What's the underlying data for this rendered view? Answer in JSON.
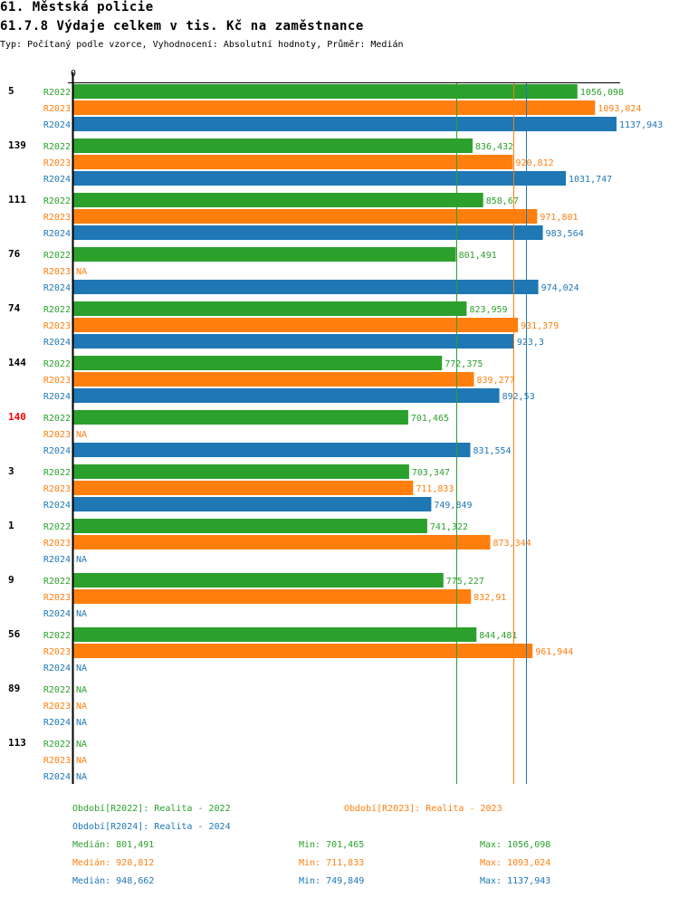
{
  "header": {
    "title": "61. Městská policie",
    "subtitle": "61.7.8 Výdaje celkem v tis. Kč na zaměstnance",
    "info": "Typ: Počítaný podle vzorce, Vyhodnocení: Absolutní hodnoty, Průměr: Medián"
  },
  "colors": {
    "R2022": "#2ca02c",
    "R2023": "#ff7f0e",
    "R2024": "#1f77b4",
    "highlight": "#ff0000",
    "axis": "#000000"
  },
  "chart_data": {
    "type": "bar",
    "orientation": "horizontal",
    "title": "61.7.8 Výdaje celkem v tis. Kč na zaměstnance",
    "xlabel": "",
    "ylabel": "",
    "x_tick_labels": [
      "0"
    ],
    "xlim": [
      0,
      1137.943
    ],
    "series_names": [
      "R2022",
      "R2023",
      "R2024"
    ],
    "na_label": "NA",
    "groups": [
      {
        "id": "5",
        "highlight": false,
        "values": [
          1056.098,
          1093.024,
          1137.943
        ],
        "labels": [
          "1056,098",
          "1093,024",
          "1137,943"
        ]
      },
      {
        "id": "139",
        "highlight": false,
        "values": [
          836.432,
          920.812,
          1031.747
        ],
        "labels": [
          "836,432",
          "920,812",
          "1031,747"
        ]
      },
      {
        "id": "111",
        "highlight": false,
        "values": [
          858.67,
          971.801,
          983.564
        ],
        "labels": [
          "858,67",
          "971,801",
          "983,564"
        ]
      },
      {
        "id": "76",
        "highlight": false,
        "values": [
          801.491,
          null,
          974.024
        ],
        "labels": [
          "801,491",
          "NA",
          "974,024"
        ]
      },
      {
        "id": "74",
        "highlight": false,
        "values": [
          823.959,
          931.379,
          923.3
        ],
        "labels": [
          "823,959",
          "931,379",
          "923,3"
        ]
      },
      {
        "id": "144",
        "highlight": false,
        "values": [
          772.375,
          839.277,
          892.53
        ],
        "labels": [
          "772,375",
          "839,277",
          "892,53"
        ]
      },
      {
        "id": "140",
        "highlight": true,
        "values": [
          701.465,
          null,
          831.554
        ],
        "labels": [
          "701,465",
          "NA",
          "831,554"
        ]
      },
      {
        "id": "3",
        "highlight": false,
        "values": [
          703.347,
          711.833,
          749.849
        ],
        "labels": [
          "703,347",
          "711,833",
          "749,849"
        ]
      },
      {
        "id": "1",
        "highlight": false,
        "values": [
          741.322,
          873.344,
          null
        ],
        "labels": [
          "741,322",
          "873,344",
          "NA"
        ]
      },
      {
        "id": "9",
        "highlight": false,
        "values": [
          775.227,
          832.91,
          null
        ],
        "labels": [
          "775,227",
          "832,91",
          "NA"
        ]
      },
      {
        "id": "56",
        "highlight": false,
        "values": [
          844.481,
          961.944,
          null
        ],
        "labels": [
          "844,481",
          "961,944",
          "NA"
        ]
      },
      {
        "id": "89",
        "highlight": false,
        "values": [
          null,
          null,
          null
        ],
        "labels": [
          "NA",
          "NA",
          "NA"
        ]
      },
      {
        "id": "113",
        "highlight": false,
        "values": [
          null,
          null,
          null
        ],
        "labels": [
          "NA",
          "NA",
          "NA"
        ]
      }
    ],
    "reference_lines": [
      {
        "series": "R2022",
        "type": "median",
        "value": 801.491
      },
      {
        "series": "R2023",
        "type": "median",
        "value": 920.812
      },
      {
        "series": "R2024",
        "type": "median",
        "value": 948.662
      }
    ]
  },
  "legend": {
    "periods": [
      {
        "series": "R2022",
        "text": "Období[R2022]: Realita - 2022"
      },
      {
        "series": "R2023",
        "text": "Období[R2023]: Realita - 2023"
      },
      {
        "series": "R2024",
        "text": "Období[R2024]: Realita - 2024"
      }
    ],
    "stats": [
      {
        "series": "R2022",
        "median": "Medián: 801,491",
        "min": "Min: 701,465",
        "max": "Max: 1056,098"
      },
      {
        "series": "R2023",
        "median": "Medián: 920,812",
        "min": "Min: 711,833",
        "max": "Max: 1093,024"
      },
      {
        "series": "R2024",
        "median": "Medián: 948,662",
        "min": "Min: 749,849",
        "max": "Max: 1137,943"
      }
    ]
  }
}
